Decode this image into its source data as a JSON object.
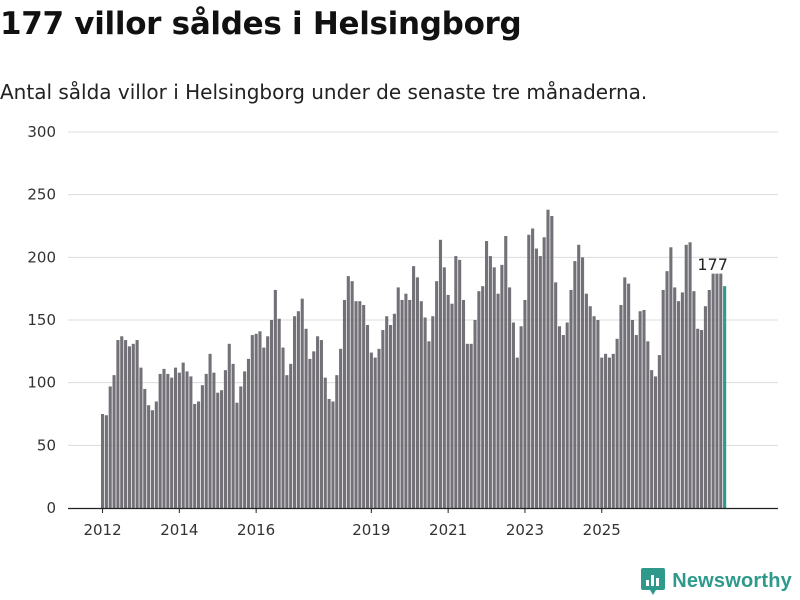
{
  "title": "177 villor såldes i Helsingborg",
  "subtitle": "Antal sålda villor i Helsingborg under de senaste tre månaderna.",
  "brand": {
    "name": "Newsworthy",
    "color": "#2f9a8c"
  },
  "chart_data": {
    "type": "bar",
    "ylim": [
      0,
      300
    ],
    "yticks": [
      0,
      50,
      100,
      150,
      200,
      250,
      300
    ],
    "grid": true,
    "bar_color": "#737177",
    "highlight_color": "#2e9a8a",
    "xlabels": [
      {
        "label": "2012",
        "index": 0
      },
      {
        "label": "2014",
        "index": 20
      },
      {
        "label": "2016",
        "index": 40
      },
      {
        "label": "2019",
        "index": 70
      },
      {
        "label": "2021",
        "index": 90
      },
      {
        "label": "2023",
        "index": 110
      },
      {
        "label": "2025",
        "index": 130
      }
    ],
    "last_value_label": "177",
    "values": [
      75,
      74,
      97,
      106,
      134,
      137,
      134,
      129,
      131,
      134,
      112,
      95,
      82,
      78,
      85,
      107,
      111,
      107,
      104,
      112,
      108,
      116,
      109,
      105,
      83,
      85,
      98,
      107,
      123,
      108,
      92,
      94,
      110,
      131,
      115,
      84,
      97,
      109,
      119,
      138,
      139,
      141,
      128,
      137,
      150,
      174,
      151,
      128,
      106,
      115,
      153,
      157,
      167,
      143,
      119,
      125,
      137,
      134,
      104,
      87,
      85,
      106,
      127,
      166,
      185,
      181,
      165,
      165,
      162,
      146,
      124,
      120,
      127,
      142,
      153,
      146,
      155,
      176,
      166,
      171,
      166,
      193,
      184,
      165,
      152,
      133,
      153,
      181,
      214,
      192,
      170,
      163,
      201,
      198,
      166,
      131,
      131,
      150,
      173,
      177,
      213,
      201,
      192,
      171,
      194,
      217,
      176,
      148,
      120,
      145,
      166,
      218,
      223,
      207,
      201,
      216,
      238,
      233,
      180,
      145,
      138,
      148,
      174,
      197,
      210,
      200,
      171,
      161,
      153,
      150,
      120,
      123,
      120,
      123,
      135,
      162,
      184,
      179,
      150,
      138,
      157,
      158,
      133,
      110,
      105,
      122,
      174,
      189,
      208,
      176,
      165,
      172,
      210,
      212,
      173,
      143,
      142,
      161,
      174,
      187,
      187,
      187,
      177
    ]
  }
}
